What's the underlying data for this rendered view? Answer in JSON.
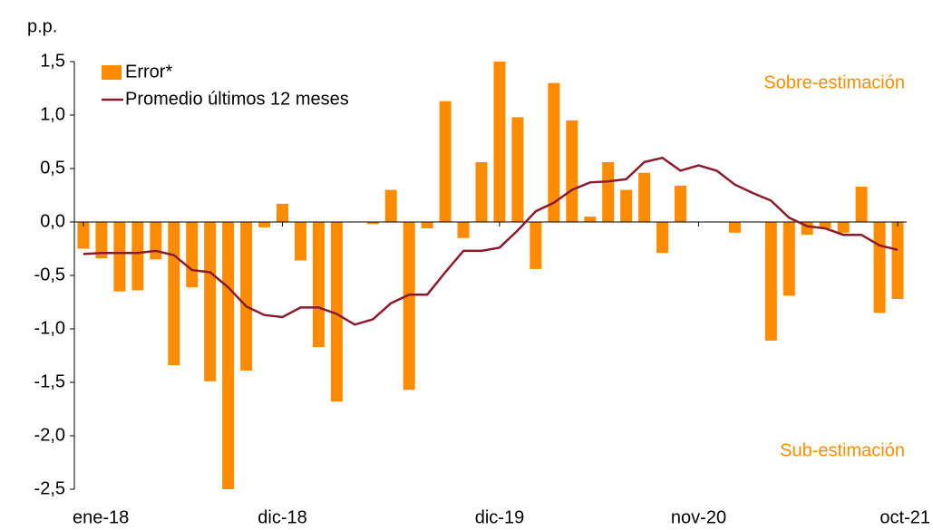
{
  "chart_data": {
    "type": "bar",
    "unit_label": "p.p.",
    "categories": [
      "ene-18",
      null,
      null,
      null,
      null,
      null,
      null,
      null,
      null,
      null,
      null,
      "dic-18",
      null,
      null,
      null,
      null,
      null,
      null,
      null,
      null,
      null,
      null,
      null,
      "dic-19",
      null,
      null,
      null,
      null,
      null,
      null,
      null,
      null,
      null,
      null,
      "nov-20",
      null,
      null,
      null,
      null,
      null,
      null,
      null,
      null,
      null,
      null,
      "oct-21"
    ],
    "series": [
      {
        "name": "Error*",
        "type": "bar",
        "color": "#ff8c00",
        "values": [
          -0.25,
          -0.34,
          -0.65,
          -0.64,
          -0.35,
          -1.34,
          -0.61,
          -1.49,
          -2.5,
          -1.39,
          -0.05,
          0.17,
          -0.36,
          -1.17,
          -1.68,
          0,
          -0.02,
          0.3,
          -1.57,
          -0.06,
          1.13,
          -0.15,
          0.56,
          1.5,
          0.98,
          -0.44,
          1.3,
          0.95,
          0.05,
          0.56,
          0.3,
          0.46,
          -0.29,
          0.34,
          0,
          0,
          -0.1,
          0,
          -1.11,
          -0.69,
          -0.12,
          -0.06,
          -0.1,
          0.33,
          -0.85,
          -0.72
        ]
      },
      {
        "name": "Promedio últimos 12 meses",
        "type": "line",
        "color": "#8b1a2b",
        "values": [
          -0.3,
          -0.29,
          -0.29,
          -0.29,
          -0.27,
          -0.31,
          -0.45,
          -0.47,
          -0.61,
          -0.79,
          -0.87,
          -0.89,
          -0.8,
          -0.8,
          -0.86,
          -0.96,
          -0.91,
          -0.76,
          -0.68,
          -0.68,
          -0.47,
          -0.27,
          -0.27,
          -0.24,
          -0.08,
          0.1,
          0.18,
          0.3,
          0.37,
          0.38,
          0.4,
          0.56,
          0.6,
          0.48,
          0.53,
          0.48,
          0.35,
          0.27,
          0.2,
          0.04,
          -0.04,
          -0.06,
          -0.12,
          -0.12,
          -0.22,
          -0.26
        ]
      }
    ],
    "ylim": [
      -2.5,
      1.5
    ],
    "yticks": [
      {
        "value": -2.5,
        "label": "-2,5"
      },
      {
        "value": -2,
        "label": "-2,0"
      },
      {
        "value": -1.5,
        "label": "-1,5"
      },
      {
        "value": -1,
        "label": "-1,0"
      },
      {
        "value": -0.5,
        "label": "-0,5"
      },
      {
        "value": 0,
        "label": "0,0"
      },
      {
        "value": 0.5,
        "label": "0,5"
      },
      {
        "value": 1,
        "label": "1,0"
      },
      {
        "value": 1.5,
        "label": "1,5"
      }
    ],
    "annotations": [
      "Sobre-estimación",
      "Sub-estimación"
    ],
    "annotation_color": "#ff8c00",
    "grid": false
  }
}
